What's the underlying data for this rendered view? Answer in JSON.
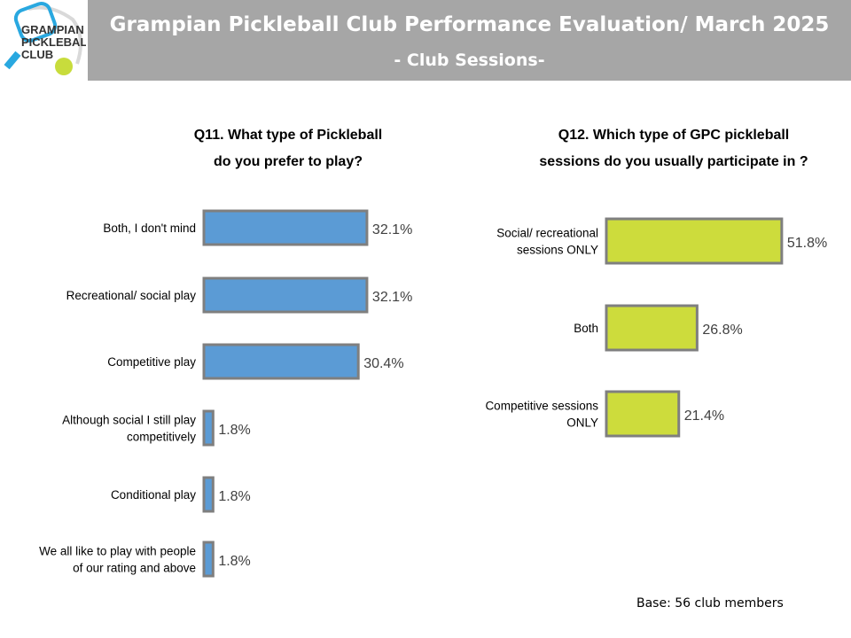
{
  "header": {
    "title": "Grampian Pickleball Club Performance Evaluation/ March 2025",
    "subtitle": "- Club Sessions-",
    "logo_text": [
      "GRAMPIAN",
      "PICKLEBALL",
      "CLUB"
    ]
  },
  "base_note": "Base: 56 club members",
  "chart_data": [
    {
      "type": "bar",
      "orientation": "horizontal",
      "title": [
        "Q11. What type of Pickleball",
        "do you prefer to play?"
      ],
      "categories": [
        [
          "Both, I don't mind"
        ],
        [
          "Recreational/ social play"
        ],
        [
          "Competitive play"
        ],
        [
          "Although social I still play",
          "competitively"
        ],
        [
          "Conditional play"
        ],
        [
          "We all like to play with people",
          "of our rating and above"
        ]
      ],
      "values": [
        32.1,
        32.1,
        30.4,
        1.8,
        1.8,
        1.8
      ],
      "labels": [
        "32.1%",
        "32.1%",
        "30.4%",
        "1.8%",
        "1.8%",
        "1.8%"
      ],
      "color": "#5b9bd5",
      "border": "#7f7f7f",
      "grid": false
    },
    {
      "type": "bar",
      "orientation": "horizontal",
      "title": [
        "Q12. Which type of GPC pickleball",
        "sessions do you usually participate in ?"
      ],
      "categories": [
        [
          "Social/ recreational",
          "sessions ONLY"
        ],
        [
          "Both"
        ],
        [
          "Competitive sessions",
          "ONLY"
        ]
      ],
      "values": [
        51.8,
        26.8,
        21.4
      ],
      "labels": [
        "51.8%",
        "26.8%",
        "21.4%"
      ],
      "color": "#cddc3c",
      "border": "#7f7f7f",
      "grid": false
    }
  ]
}
